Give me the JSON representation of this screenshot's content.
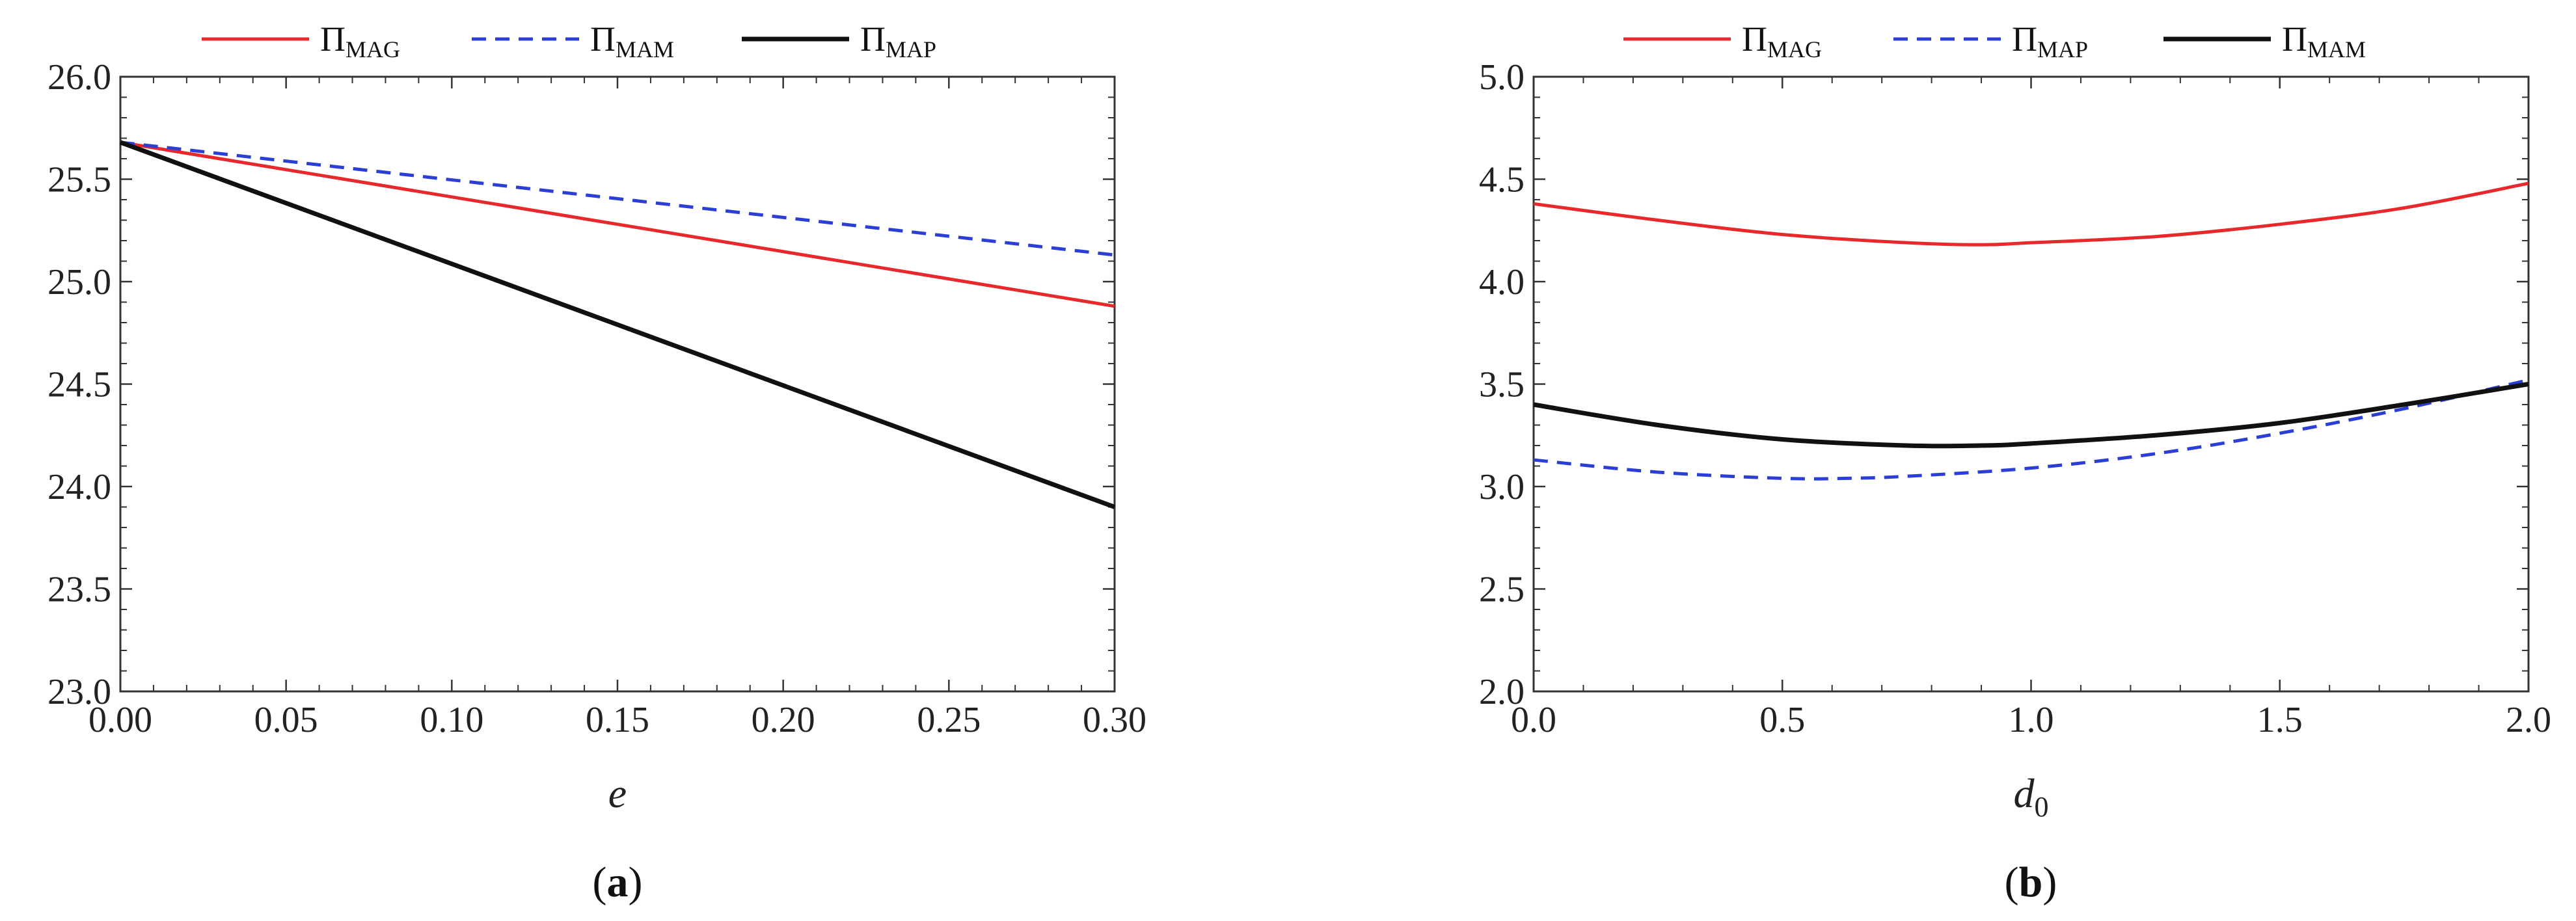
{
  "chart_data": [
    {
      "type": "line",
      "caption": "a",
      "xlabel": "e",
      "xlabel_sub": "",
      "ylabel": "",
      "xlim": [
        0,
        0.3
      ],
      "ylim": [
        23.0,
        26.0
      ],
      "x_ticks": [
        "0.00",
        "0.05",
        "0.10",
        "0.15",
        "0.20",
        "0.25",
        "0.30"
      ],
      "y_ticks": [
        "23.0",
        "23.5",
        "24.0",
        "24.5",
        "25.0",
        "25.5",
        "26.0"
      ],
      "grid": false,
      "legend_position": "top",
      "series": [
        {
          "symbol": "Π",
          "sub": "MAG",
          "color": "#e8282b",
          "style": "solid",
          "x": [
            0,
            0.3
          ],
          "y": [
            25.68,
            24.88
          ]
        },
        {
          "symbol": "Π",
          "sub": "MAM",
          "color": "#2b3ed6",
          "style": "dashed",
          "x": [
            0,
            0.3
          ],
          "y": [
            25.68,
            25.13
          ]
        },
        {
          "symbol": "Π",
          "sub": "MAP",
          "color": "#111111",
          "style": "solid",
          "x": [
            0,
            0.3
          ],
          "y": [
            25.68,
            23.9
          ]
        }
      ]
    },
    {
      "type": "line",
      "caption": "b",
      "xlabel": "d",
      "xlabel_sub": "0",
      "ylabel": "",
      "xlim": [
        0,
        2.0
      ],
      "ylim": [
        2.0,
        5.0
      ],
      "x_ticks": [
        "0.0",
        "0.5",
        "1.0",
        "1.5",
        "2.0"
      ],
      "y_ticks": [
        "2.0",
        "2.5",
        "3.0",
        "3.5",
        "4.0",
        "4.5",
        "5.0"
      ],
      "grid": false,
      "legend_position": "top",
      "series": [
        {
          "symbol": "Π",
          "sub": "MAG",
          "color": "#e8282b",
          "style": "solid",
          "x": [
            0,
            0.25,
            0.5,
            0.75,
            0.9,
            1.0,
            1.25,
            1.5,
            1.75,
            2.0
          ],
          "y": [
            4.38,
            4.3,
            4.23,
            4.19,
            4.18,
            4.19,
            4.22,
            4.28,
            4.36,
            4.48
          ]
        },
        {
          "symbol": "Π",
          "sub": "MAP",
          "color": "#2b3ed6",
          "style": "dashed",
          "x": [
            0,
            0.25,
            0.5,
            0.63,
            0.75,
            1.0,
            1.25,
            1.5,
            1.75,
            2.0
          ],
          "y": [
            3.13,
            3.07,
            3.04,
            3.04,
            3.05,
            3.09,
            3.16,
            3.26,
            3.38,
            3.52
          ]
        },
        {
          "symbol": "Π",
          "sub": "MAM",
          "color": "#111111",
          "style": "solid",
          "x": [
            0,
            0.25,
            0.5,
            0.75,
            0.9,
            1.0,
            1.25,
            1.5,
            1.75,
            2.0
          ],
          "y": [
            3.4,
            3.3,
            3.23,
            3.2,
            3.2,
            3.21,
            3.25,
            3.31,
            3.4,
            3.5
          ]
        }
      ]
    }
  ]
}
